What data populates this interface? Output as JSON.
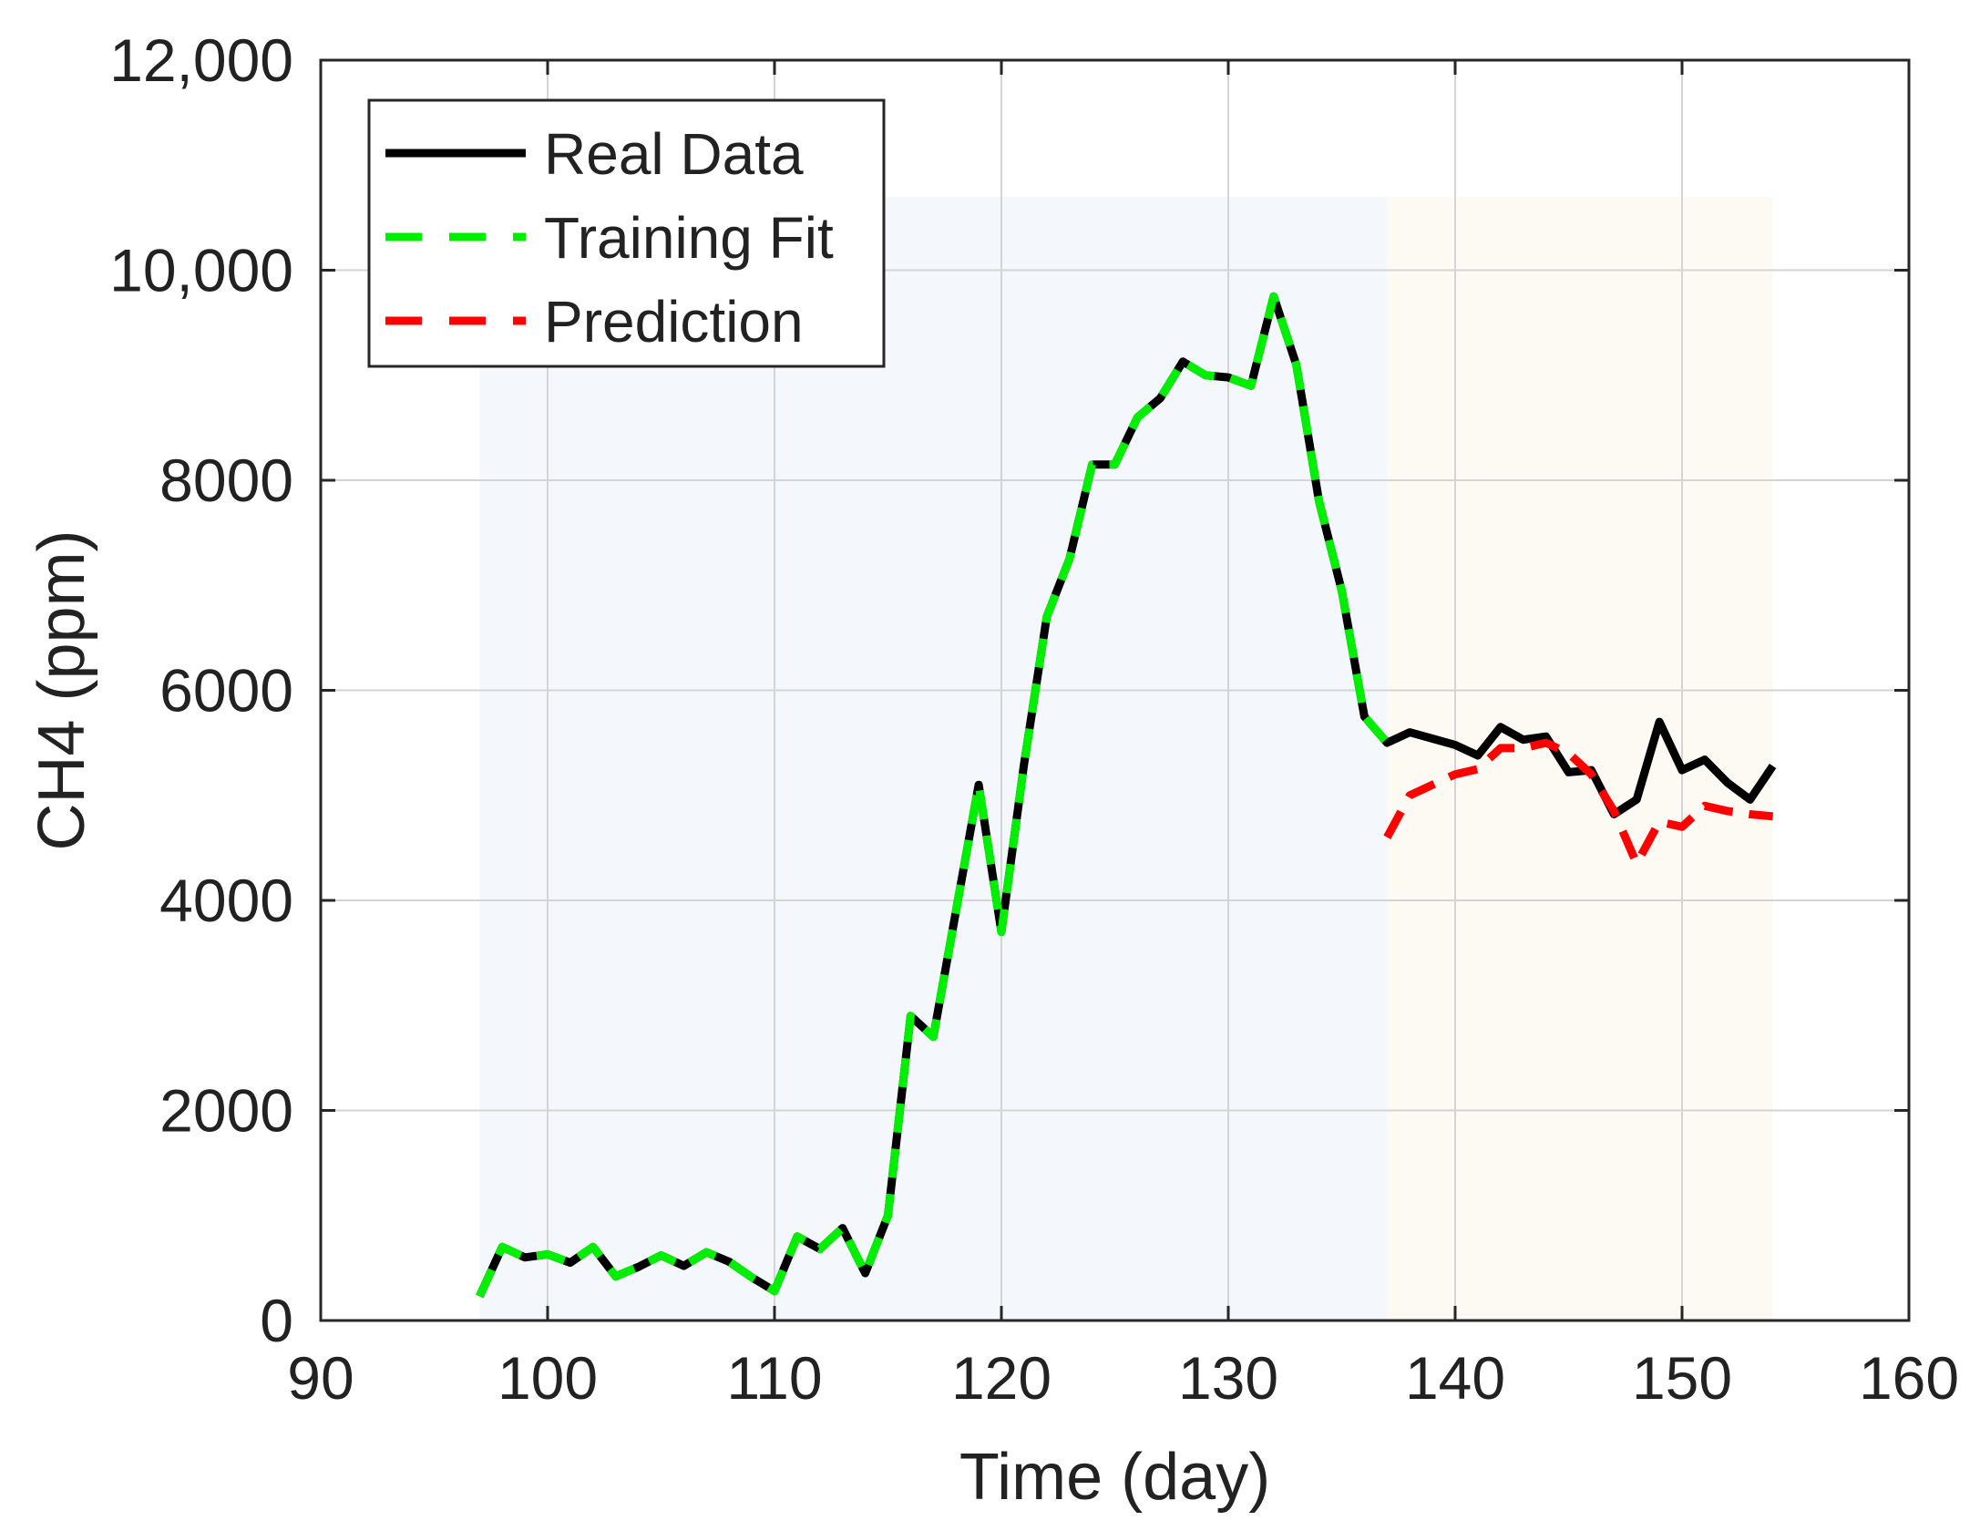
{
  "chart_data": {
    "type": "line",
    "xlabel": "Time (day)",
    "ylabel": "CH4 (ppm)",
    "xlim": [
      90,
      160
    ],
    "ylim": [
      0,
      12000
    ],
    "x_ticks": [
      90,
      100,
      110,
      120,
      130,
      140,
      150,
      160
    ],
    "x_tick_labels": [
      "90",
      "100",
      "110",
      "120",
      "130",
      "140",
      "150",
      "160"
    ],
    "y_ticks": [
      0,
      2000,
      4000,
      6000,
      8000,
      10000,
      12000
    ],
    "y_tick_labels": [
      "0",
      "2000",
      "4000",
      "6000",
      "8000",
      "10,000",
      "12,000"
    ],
    "grid": true,
    "legend_position": "top-left",
    "regions": [
      {
        "x_start": 97,
        "x_end": 137,
        "y_top": 10700,
        "color": "#f4f8fd"
      },
      {
        "x_start": 137,
        "x_end": 154,
        "y_top": 10700,
        "color": "#fdfaf4"
      }
    ],
    "series": [
      {
        "name": "Real Data",
        "color": "#000000",
        "style": "solid",
        "x": [
          97,
          98,
          99,
          100,
          101,
          102,
          103,
          104,
          105,
          106,
          107,
          108,
          109,
          110,
          111,
          112,
          113,
          114,
          115,
          116,
          117,
          118,
          119,
          120,
          121,
          122,
          123,
          124,
          125,
          126,
          127,
          128,
          129,
          130,
          131,
          132,
          133,
          134,
          135,
          136,
          137,
          138,
          139,
          140,
          141,
          142,
          143,
          144,
          145,
          146,
          147,
          148,
          149,
          150,
          151,
          152,
          153,
          154
        ],
        "values": [
          230,
          700,
          600,
          630,
          550,
          700,
          420,
          510,
          620,
          520,
          650,
          560,
          410,
          280,
          800,
          680,
          880,
          450,
          1000,
          2900,
          2700,
          3900,
          5100,
          3700,
          5300,
          6700,
          7250,
          8150,
          8150,
          8600,
          8780,
          9130,
          9000,
          8980,
          8900,
          9750,
          9100,
          7800,
          6950,
          5750,
          5500,
          5600,
          5540,
          5480,
          5380,
          5650,
          5530,
          5560,
          5220,
          5240,
          4820,
          4960,
          5700,
          5240,
          5340,
          5120,
          4960,
          5280
        ]
      },
      {
        "name": "Training Fit",
        "color": "#00ee00",
        "style": "dashed",
        "x": [
          97,
          98,
          99,
          100,
          101,
          102,
          103,
          104,
          105,
          106,
          107,
          108,
          109,
          110,
          111,
          112,
          113,
          114,
          115,
          116,
          117,
          118,
          119,
          120,
          121,
          122,
          123,
          124,
          125,
          126,
          127,
          128,
          129,
          130,
          131,
          132,
          133,
          134,
          135,
          136,
          137
        ],
        "values": [
          230,
          700,
          600,
          630,
          550,
          700,
          420,
          510,
          620,
          520,
          650,
          560,
          410,
          280,
          800,
          680,
          880,
          450,
          1000,
          2900,
          2700,
          3900,
          5100,
          3700,
          5300,
          6700,
          7250,
          8150,
          8150,
          8600,
          8780,
          9130,
          9000,
          8980,
          8900,
          9750,
          9100,
          7800,
          6950,
          5750,
          5500
        ]
      },
      {
        "name": "Prediction",
        "color": "#ff0000",
        "style": "dashed",
        "x": [
          137,
          138,
          139,
          140,
          141,
          142,
          143,
          144,
          145,
          146,
          147,
          148,
          149,
          150,
          151,
          152,
          153,
          154
        ],
        "values": [
          4600,
          5000,
          5100,
          5200,
          5250,
          5450,
          5450,
          5500,
          5400,
          5200,
          4850,
          4350,
          4750,
          4700,
          4900,
          4850,
          4820,
          4800
        ]
      }
    ]
  }
}
